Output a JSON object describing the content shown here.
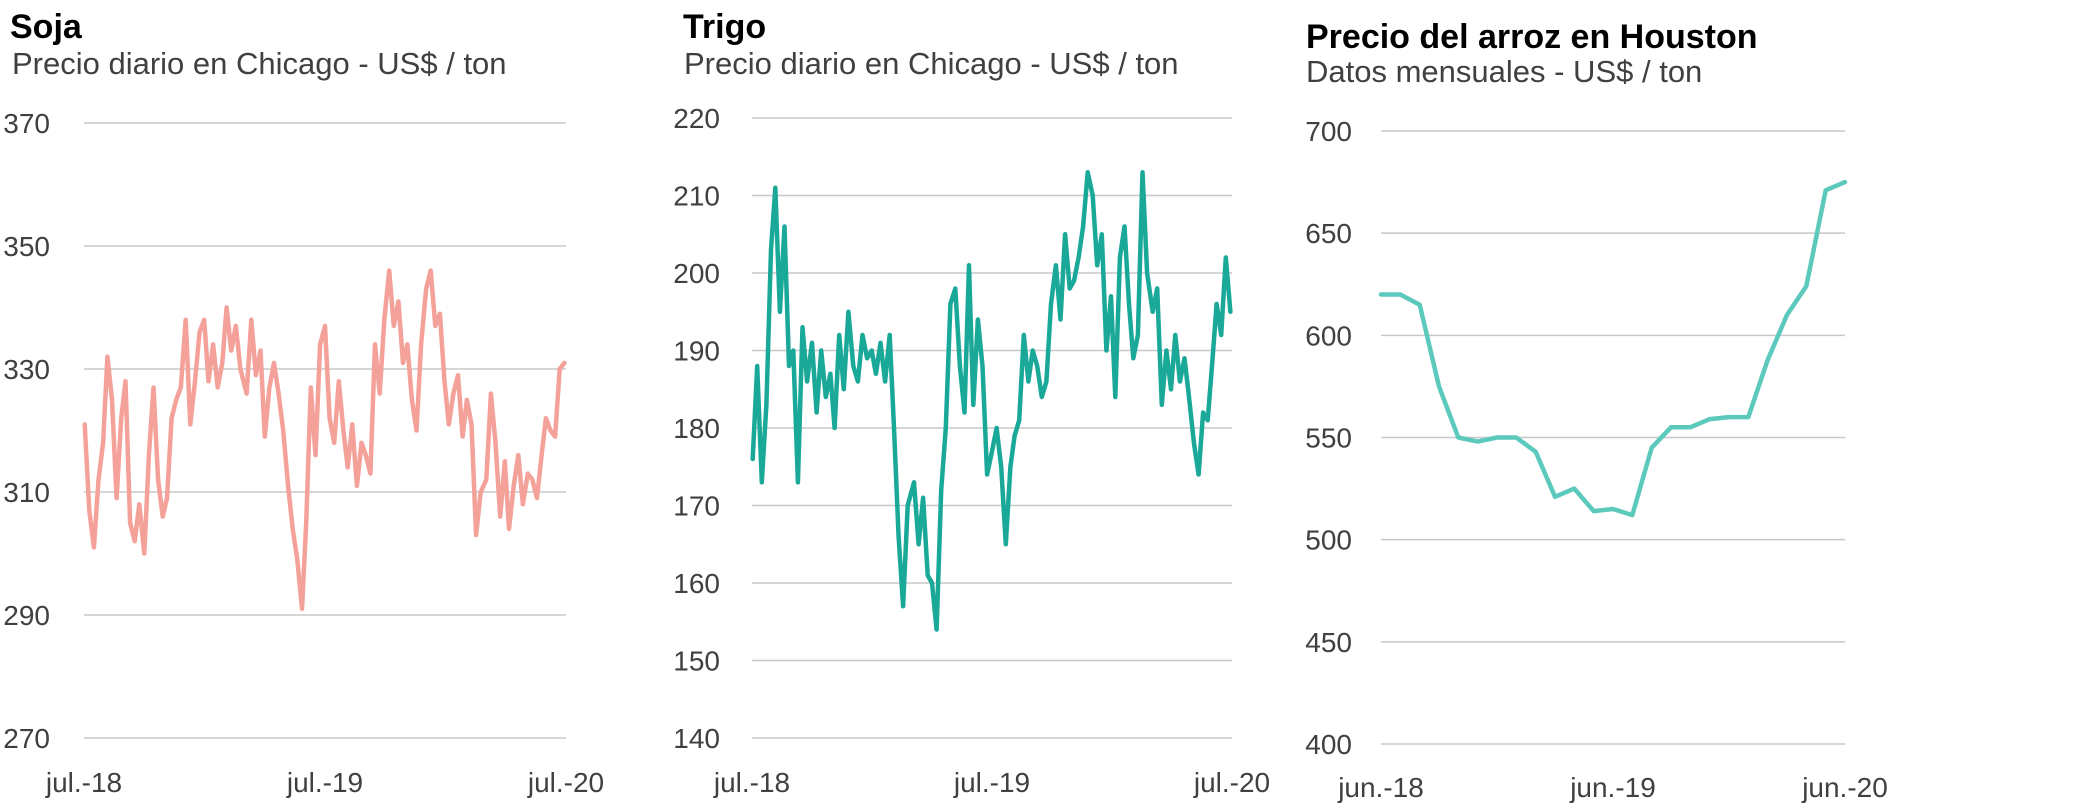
{
  "chart_data": [
    {
      "type": "line",
      "title": "Soja",
      "subtitle": "Precio diario en Chicago - US$ / ton",
      "xlabel": "",
      "ylabel": "",
      "ylim": [
        270,
        370
      ],
      "yticks": [
        270,
        290,
        310,
        330,
        350,
        370
      ],
      "xticks": [
        "jul.-18",
        "jul.-19",
        "jul.-20"
      ],
      "xlim": [
        "2018-07",
        "2020-07"
      ],
      "grid": true,
      "color": "#f4a19a",
      "series": [
        {
          "x": [
            "2018-07-02",
            "2018-07-09",
            "2018-07-16",
            "2018-07-23",
            "2018-07-30",
            "2018-08-06",
            "2018-08-13",
            "2018-08-20",
            "2018-08-27",
            "2018-09-03",
            "2018-09-10",
            "2018-09-17",
            "2018-09-24",
            "2018-10-01",
            "2018-10-08",
            "2018-10-15",
            "2018-10-22",
            "2018-10-29",
            "2018-11-05",
            "2018-11-12",
            "2018-11-19",
            "2018-11-26",
            "2018-12-03",
            "2018-12-10",
            "2018-12-17",
            "2018-12-24",
            "2018-12-31",
            "2019-01-07",
            "2019-01-14",
            "2019-01-21",
            "2019-01-28",
            "2019-02-04",
            "2019-02-11",
            "2019-02-18",
            "2019-02-25",
            "2019-03-04",
            "2019-03-11",
            "2019-03-18",
            "2019-03-25",
            "2019-04-01",
            "2019-04-08",
            "2019-04-15",
            "2019-04-22",
            "2019-04-29",
            "2019-05-06",
            "2019-05-13",
            "2019-05-20",
            "2019-05-27",
            "2019-06-03",
            "2019-06-10",
            "2019-06-17",
            "2019-06-24",
            "2019-07-01",
            "2019-07-08",
            "2019-07-15",
            "2019-07-22",
            "2019-07-29",
            "2019-08-05",
            "2019-08-12",
            "2019-08-19",
            "2019-08-26",
            "2019-09-02",
            "2019-09-09",
            "2019-09-16",
            "2019-09-23",
            "2019-09-30",
            "2019-10-07",
            "2019-10-14",
            "2019-10-21",
            "2019-10-28",
            "2019-11-04",
            "2019-11-11",
            "2019-11-18",
            "2019-11-25",
            "2019-12-02",
            "2019-12-09",
            "2019-12-16",
            "2019-12-23",
            "2019-12-30",
            "2020-01-06",
            "2020-01-13",
            "2020-01-20",
            "2020-01-27",
            "2020-02-03",
            "2020-02-10",
            "2020-02-17",
            "2020-02-24",
            "2020-03-02",
            "2020-03-09",
            "2020-03-16",
            "2020-03-23",
            "2020-03-30",
            "2020-04-06",
            "2020-04-13",
            "2020-04-20",
            "2020-04-27",
            "2020-05-04",
            "2020-05-11",
            "2020-05-18",
            "2020-05-25",
            "2020-06-01",
            "2020-06-08",
            "2020-06-15",
            "2020-06-22",
            "2020-06-29"
          ],
          "values": [
            321,
            307,
            301,
            312,
            318,
            332,
            325,
            309,
            322,
            328,
            305,
            302,
            308,
            300,
            316,
            327,
            312,
            306,
            309,
            322,
            325,
            327,
            338,
            321,
            328,
            336,
            338,
            328,
            334,
            327,
            331,
            340,
            333,
            337,
            330,
            326,
            338,
            329,
            333,
            319,
            327,
            331,
            326,
            320,
            311,
            304,
            299,
            291,
            305,
            327,
            316,
            334,
            337,
            322,
            318,
            328,
            320,
            314,
            321,
            311,
            318,
            316,
            313,
            334,
            326,
            338,
            346,
            337,
            341,
            331,
            334,
            325,
            320,
            334,
            343,
            346,
            337,
            339,
            328,
            321,
            326,
            329,
            319,
            325,
            321,
            303,
            310,
            312,
            326,
            318,
            306,
            315,
            304,
            311,
            316,
            308,
            313,
            312,
            309,
            316,
            322,
            320,
            319,
            330,
            331
          ]
        }
      ]
    },
    {
      "type": "line",
      "title": "Trigo",
      "subtitle": "Precio diario en Chicago - US$ / ton",
      "xlabel": "",
      "ylabel": "",
      "ylim": [
        140,
        220
      ],
      "yticks": [
        140,
        150,
        160,
        170,
        180,
        190,
        200,
        210,
        220
      ],
      "xticks": [
        "jul.-18",
        "jul.-19",
        "jul.-20"
      ],
      "xlim": [
        "2018-07",
        "2020-07"
      ],
      "grid": true,
      "color": "#1aa899",
      "series": [
        {
          "x": [
            "2018-07-02",
            "2018-07-09",
            "2018-07-16",
            "2018-07-23",
            "2018-07-30",
            "2018-08-06",
            "2018-08-13",
            "2018-08-20",
            "2018-08-27",
            "2018-09-03",
            "2018-09-10",
            "2018-09-17",
            "2018-09-24",
            "2018-10-01",
            "2018-10-08",
            "2018-10-15",
            "2018-10-22",
            "2018-10-29",
            "2018-11-05",
            "2018-11-12",
            "2018-11-19",
            "2018-11-26",
            "2018-12-03",
            "2018-12-10",
            "2018-12-17",
            "2018-12-24",
            "2018-12-31",
            "2019-01-07",
            "2019-01-14",
            "2019-01-21",
            "2019-01-28",
            "2019-02-04",
            "2019-02-11",
            "2019-02-18",
            "2019-02-25",
            "2019-03-04",
            "2019-03-11",
            "2019-03-18",
            "2019-03-25",
            "2019-04-01",
            "2019-04-08",
            "2019-04-15",
            "2019-04-22",
            "2019-04-29",
            "2019-05-06",
            "2019-05-13",
            "2019-05-20",
            "2019-05-27",
            "2019-06-03",
            "2019-06-10",
            "2019-06-17",
            "2019-06-24",
            "2019-07-01",
            "2019-07-08",
            "2019-07-15",
            "2019-07-22",
            "2019-07-29",
            "2019-08-05",
            "2019-08-12",
            "2019-08-19",
            "2019-08-26",
            "2019-09-02",
            "2019-09-09",
            "2019-09-16",
            "2019-09-23",
            "2019-09-30",
            "2019-10-07",
            "2019-10-14",
            "2019-10-21",
            "2019-10-28",
            "2019-11-04",
            "2019-11-11",
            "2019-11-18",
            "2019-11-25",
            "2019-12-02",
            "2019-12-09",
            "2019-12-16",
            "2019-12-23",
            "2019-12-30",
            "2020-01-06",
            "2020-01-13",
            "2020-01-20",
            "2020-01-27",
            "2020-02-03",
            "2020-02-10",
            "2020-02-17",
            "2020-02-24",
            "2020-03-02",
            "2020-03-09",
            "2020-03-16",
            "2020-03-23",
            "2020-03-30",
            "2020-04-06",
            "2020-04-13",
            "2020-04-20",
            "2020-04-27",
            "2020-05-04",
            "2020-05-11",
            "2020-05-18",
            "2020-05-25",
            "2020-06-01",
            "2020-06-08",
            "2020-06-15",
            "2020-06-22",
            "2020-06-29"
          ],
          "values": [
            176,
            188,
            173,
            183,
            203,
            211,
            195,
            206,
            188,
            190,
            173,
            193,
            186,
            191,
            182,
            190,
            184,
            187,
            180,
            192,
            185,
            195,
            188,
            186,
            192,
            189,
            190,
            187,
            191,
            186,
            192,
            180,
            166,
            157,
            170,
            173,
            165,
            171,
            161,
            160,
            154,
            172,
            180,
            196,
            198,
            188,
            182,
            201,
            183,
            194,
            188,
            174,
            177,
            180,
            175,
            165,
            175,
            179,
            181,
            192,
            186,
            190,
            188,
            184,
            186,
            196,
            201,
            194,
            205,
            198,
            199,
            202,
            206,
            213,
            210,
            201,
            205,
            190,
            197,
            184,
            202,
            206,
            196,
            189,
            192,
            213,
            200,
            195,
            198,
            183,
            190,
            185,
            192,
            186,
            189,
            184,
            178,
            174,
            182,
            181,
            188,
            196,
            192,
            202,
            195
          ]
        }
      ]
    },
    {
      "type": "line",
      "title": "Precio del arroz en Houston",
      "subtitle": "Datos mensuales - US$ / ton",
      "xlabel": "",
      "ylabel": "",
      "ylim": [
        400,
        700
      ],
      "yticks": [
        400,
        450,
        500,
        550,
        600,
        650,
        700
      ],
      "xticks": [
        "jun.-18",
        "jun.-19",
        "jun.-20"
      ],
      "xlim": [
        "2018-06",
        "2020-06"
      ],
      "grid": true,
      "color": "#5cc9bd",
      "series": [
        {
          "x": [
            "2018-06",
            "2018-07",
            "2018-08",
            "2018-09",
            "2018-10",
            "2018-11",
            "2018-12",
            "2019-01",
            "2019-02",
            "2019-03",
            "2019-04",
            "2019-05",
            "2019-06",
            "2019-07",
            "2019-08",
            "2019-09",
            "2019-10",
            "2019-11",
            "2019-12",
            "2020-01",
            "2020-02",
            "2020-03",
            "2020-04",
            "2020-05",
            "2020-06"
          ],
          "values": [
            620,
            620,
            615,
            575,
            550,
            548,
            550,
            550,
            543,
            521,
            525,
            514,
            515,
            512,
            545,
            555,
            555,
            559,
            560,
            560,
            588,
            610,
            624,
            671,
            675
          ]
        }
      ]
    }
  ]
}
